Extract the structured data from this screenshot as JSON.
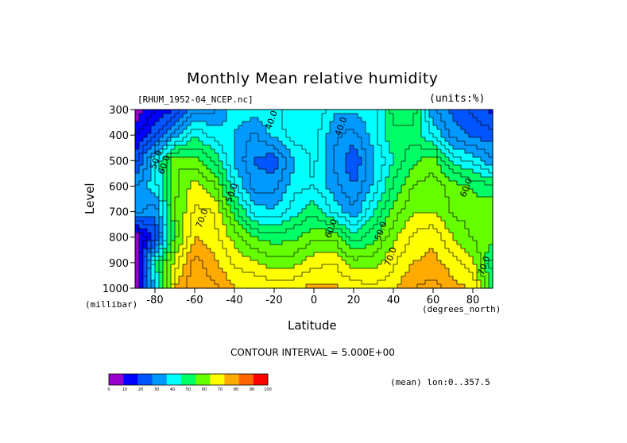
{
  "title": "Monthly Mean relative humidity",
  "file_label": "[RHUM_1952-04_NCEP.nc]",
  "units_label": "(units:%)",
  "contour_interval": "CONTOUR INTERVAL = 5.000E+00",
  "averaging_note": "(mean) lon:0..357.5",
  "x_axis": {
    "title": "Latitude",
    "units": "(degrees_north)"
  },
  "y_axis": {
    "title": "Level",
    "units": "(millibar)"
  },
  "chart_data": {
    "type": "heatmap",
    "title": "Monthly Mean relative humidity",
    "xlabel": "Latitude",
    "ylabel": "Level",
    "x_units": "degrees_north",
    "y_units": "millibar",
    "value_units": "%",
    "xlim": [
      -90,
      90
    ],
    "ylim": [
      1000,
      300
    ],
    "x_ticks": [
      -80,
      -60,
      -40,
      -20,
      0,
      20,
      40,
      60,
      80
    ],
    "x_tick_labels": [
      "-80",
      "-60",
      "-40",
      "-20",
      "0",
      "20",
      "40",
      "60",
      "80"
    ],
    "y_ticks": [
      300,
      400,
      500,
      600,
      700,
      800,
      900,
      1000
    ],
    "y_tick_labels": [
      "300",
      "400",
      "500",
      "600",
      "700",
      "800",
      "900",
      "1000"
    ],
    "contour_interval": 5,
    "contour_labels": [
      {
        "text": "40.0",
        "lat": -20,
        "level": 345
      },
      {
        "text": "40.0",
        "lat": 15,
        "level": 370
      },
      {
        "text": "50.0",
        "lat": -78,
        "level": 500
      },
      {
        "text": "60.0",
        "lat": -74,
        "level": 520
      },
      {
        "text": "50.0",
        "lat": -40,
        "level": 630
      },
      {
        "text": "70.0",
        "lat": -55,
        "level": 730
      },
      {
        "text": "60.0",
        "lat": 10,
        "level": 770
      },
      {
        "text": "50.0",
        "lat": 35,
        "level": 780
      },
      {
        "text": "70.0",
        "lat": 40,
        "level": 880
      },
      {
        "text": "60.0",
        "lat": 78,
        "level": 610
      },
      {
        "text": "70.0",
        "lat": 87,
        "level": 915
      }
    ],
    "latitudes": [
      -90,
      -80,
      -70,
      -60,
      -50,
      -40,
      -30,
      -20,
      -10,
      0,
      10,
      20,
      30,
      40,
      50,
      60,
      70,
      80,
      90
    ],
    "levels": [
      300,
      400,
      500,
      600,
      700,
      800,
      900,
      1000
    ],
    "values": [
      [
        5,
        14,
        20,
        33,
        34,
        43,
        43,
        43,
        50,
        50,
        41,
        41,
        43,
        57,
        58,
        36,
        28,
        24,
        18
      ],
      [
        15,
        24,
        37,
        49,
        43,
        40,
        34,
        42,
        47,
        48,
        36,
        33,
        43,
        54,
        53,
        45,
        33,
        29,
        27
      ],
      [
        22,
        44,
        65,
        62,
        54,
        39,
        30,
        26,
        40,
        46,
        35,
        25,
        39,
        50,
        59,
        63,
        48,
        43,
        36
      ],
      [
        35,
        43,
        64,
        72,
        66,
        46,
        33,
        33,
        43,
        45,
        37,
        30,
        41,
        56,
        65,
        68,
        63,
        59,
        56
      ],
      [
        38,
        31,
        64,
        76,
        75,
        58,
        43,
        41,
        48,
        54,
        44,
        36,
        50,
        62,
        70,
        70,
        64,
        63,
        65
      ],
      [
        5,
        22,
        63,
        80,
        77,
        68,
        60,
        57,
        59,
        64,
        64,
        52,
        58,
        69,
        76,
        79,
        70,
        64,
        62
      ],
      [
        5,
        50,
        72,
        87,
        81,
        74,
        71,
        67,
        68,
        73,
        75,
        67,
        68,
        74,
        80,
        82,
        77,
        72,
        52
      ],
      [
        5,
        41,
        80,
        90,
        86,
        80,
        80,
        79,
        79,
        82,
        81,
        78,
        76,
        79,
        85,
        87,
        82,
        79,
        56
      ]
    ],
    "colorbar": {
      "ticks": [
        "0",
        "10",
        "20",
        "30",
        "40",
        "50",
        "60",
        "70",
        "80",
        "90",
        "100"
      ],
      "colors": [
        "#9900cc",
        "#0000ff",
        "#0055ff",
        "#0099ff",
        "#00ffff",
        "#00ff66",
        "#66ff00",
        "#ffff00",
        "#ffaa00",
        "#ff6600",
        "#ff0000"
      ]
    }
  }
}
